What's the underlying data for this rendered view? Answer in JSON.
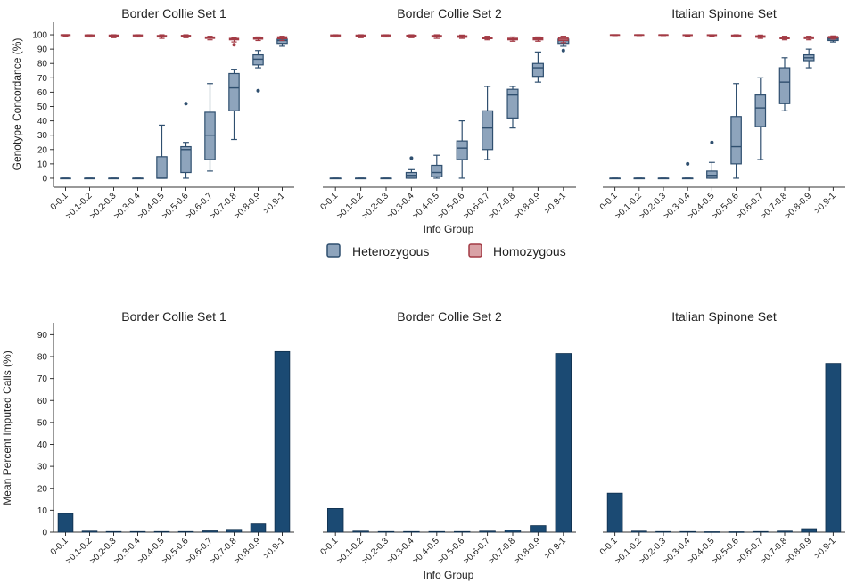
{
  "figure": {
    "legend": {
      "items": [
        {
          "label": "Heterozygous",
          "fill": "#8ea4bc",
          "stroke": "#2f4f6f"
        },
        {
          "label": "Homozygous",
          "fill": "#d9a2a6",
          "stroke": "#a33b45"
        }
      ]
    },
    "top_ylabel": "Genotype Concordance (%)",
    "top_xlabel": "Info Group",
    "bottom_ylabel": "Mean Percent Imputed Calls (%)",
    "bottom_xlabel": "Info Group"
  },
  "chart_data": [
    {
      "type": "boxplot",
      "title": "Border Collie Set 1",
      "xlabel": "Info Group",
      "ylabel": "Genotype Concordance (%)",
      "ylim": [
        -5,
        105
      ],
      "yticks": [
        0,
        10,
        20,
        30,
        40,
        50,
        60,
        70,
        80,
        90,
        100
      ],
      "categories": [
        "0-0.1",
        ">0.1-0.2",
        ">0.2-0.3",
        ">0.3-0.4",
        ">0.4-0.5",
        ">0.5-0.6",
        ">0.6-0.7",
        ">0.7-0.8",
        ">0.8-0.9",
        ">0.9-1"
      ],
      "series": [
        {
          "name": "Heterozygous",
          "color": "#8ea4bc",
          "boxes": [
            {
              "min": 0,
              "q1": 0,
              "median": 0,
              "q3": 0,
              "max": 0,
              "outliers": []
            },
            {
              "min": 0,
              "q1": 0,
              "median": 0,
              "q3": 0,
              "max": 0,
              "outliers": []
            },
            {
              "min": 0,
              "q1": 0,
              "median": 0,
              "q3": 0,
              "max": 0,
              "outliers": []
            },
            {
              "min": 0,
              "q1": 0,
              "median": 0,
              "q3": 0,
              "max": 0,
              "outliers": []
            },
            {
              "min": 0,
              "q1": 0,
              "median": 0,
              "q3": 15,
              "max": 37,
              "outliers": []
            },
            {
              "min": 0,
              "q1": 4,
              "median": 20,
              "q3": 22,
              "max": 25,
              "outliers": [
                52
              ]
            },
            {
              "min": 5,
              "q1": 13,
              "median": 30,
              "q3": 46,
              "max": 66,
              "outliers": []
            },
            {
              "min": 27,
              "q1": 47,
              "median": 63,
              "q3": 73,
              "max": 76,
              "outliers": []
            },
            {
              "min": 77,
              "q1": 79,
              "median": 83,
              "q3": 86,
              "max": 89,
              "outliers": [
                61
              ]
            },
            {
              "min": 92,
              "q1": 94,
              "median": 96,
              "q3": 97,
              "max": 98,
              "outliers": []
            }
          ]
        },
        {
          "name": "Homozygous",
          "color": "#d9a2a6",
          "boxes": [
            {
              "min": 99,
              "q1": 99.5,
              "median": 100,
              "q3": 100,
              "max": 100,
              "outliers": []
            },
            {
              "min": 98.5,
              "q1": 99.2,
              "median": 99.6,
              "q3": 99.9,
              "max": 100,
              "outliers": []
            },
            {
              "min": 98,
              "q1": 99,
              "median": 99.5,
              "q3": 99.8,
              "max": 100,
              "outliers": []
            },
            {
              "min": 98.5,
              "q1": 99.2,
              "median": 99.6,
              "q3": 99.9,
              "max": 100,
              "outliers": []
            },
            {
              "min": 97.5,
              "q1": 98.5,
              "median": 99,
              "q3": 99.5,
              "max": 100,
              "outliers": []
            },
            {
              "min": 98,
              "q1": 98.8,
              "median": 99.2,
              "q3": 99.6,
              "max": 100,
              "outliers": []
            },
            {
              "min": 96.5,
              "q1": 97.5,
              "median": 98,
              "q3": 98.5,
              "max": 99,
              "outliers": []
            },
            {
              "min": 95,
              "q1": 96.5,
              "median": 97,
              "q3": 97.5,
              "max": 98,
              "outliers": [
                93
              ]
            },
            {
              "min": 96,
              "q1": 97,
              "median": 97.5,
              "q3": 98,
              "max": 98.5,
              "outliers": []
            },
            {
              "min": 96,
              "q1": 97.3,
              "median": 98,
              "q3": 98.6,
              "max": 99,
              "outliers": []
            }
          ]
        }
      ]
    },
    {
      "type": "boxplot",
      "title": "Border Collie Set 2",
      "xlabel": "Info Group",
      "ylabel": "Genotype Concordance (%)",
      "ylim": [
        -5,
        105
      ],
      "yticks": [
        0,
        10,
        20,
        30,
        40,
        50,
        60,
        70,
        80,
        90,
        100
      ],
      "categories": [
        "0-0.1",
        ">0.1-0.2",
        ">0.2-0.3",
        ">0.3-0.4",
        ">0.4-0.5",
        ">0.5-0.6",
        ">0.6-0.7",
        ">0.7-0.8",
        ">0.8-0.9",
        ">0.9-1"
      ],
      "series": [
        {
          "name": "Heterozygous",
          "color": "#8ea4bc",
          "boxes": [
            {
              "min": 0,
              "q1": 0,
              "median": 0,
              "q3": 0,
              "max": 0,
              "outliers": []
            },
            {
              "min": 0,
              "q1": 0,
              "median": 0,
              "q3": 0,
              "max": 0,
              "outliers": []
            },
            {
              "min": 0,
              "q1": 0,
              "median": 0,
              "q3": 0,
              "max": 0,
              "outliers": []
            },
            {
              "min": 0,
              "q1": 0,
              "median": 2,
              "q3": 4,
              "max": 6,
              "outliers": [
                14
              ]
            },
            {
              "min": 0,
              "q1": 1,
              "median": 4,
              "q3": 9,
              "max": 16,
              "outliers": []
            },
            {
              "min": 0,
              "q1": 13,
              "median": 21,
              "q3": 26,
              "max": 40,
              "outliers": []
            },
            {
              "min": 13,
              "q1": 20,
              "median": 35,
              "q3": 47,
              "max": 64,
              "outliers": []
            },
            {
              "min": 35,
              "q1": 42,
              "median": 58,
              "q3": 62,
              "max": 64,
              "outliers": []
            },
            {
              "min": 67,
              "q1": 71,
              "median": 77,
              "q3": 80,
              "max": 88,
              "outliers": []
            },
            {
              "min": 92,
              "q1": 94,
              "median": 96,
              "q3": 97,
              "max": 98,
              "outliers": [
                89
              ]
            }
          ]
        },
        {
          "name": "Homozygous",
          "color": "#d9a2a6",
          "boxes": [
            {
              "min": 98.5,
              "q1": 99.2,
              "median": 99.6,
              "q3": 99.9,
              "max": 100,
              "outliers": []
            },
            {
              "min": 98,
              "q1": 99,
              "median": 99.5,
              "q3": 99.8,
              "max": 100,
              "outliers": []
            },
            {
              "min": 98.5,
              "q1": 99.2,
              "median": 99.6,
              "q3": 99.9,
              "max": 100,
              "outliers": []
            },
            {
              "min": 98,
              "q1": 98.8,
              "median": 99.3,
              "q3": 99.7,
              "max": 100,
              "outliers": []
            },
            {
              "min": 97.5,
              "q1": 98.5,
              "median": 99,
              "q3": 99.5,
              "max": 100,
              "outliers": []
            },
            {
              "min": 97.5,
              "q1": 98.3,
              "median": 98.8,
              "q3": 99.3,
              "max": 99.8,
              "outliers": []
            },
            {
              "min": 96.5,
              "q1": 97.3,
              "median": 97.8,
              "q3": 98.3,
              "max": 99,
              "outliers": []
            },
            {
              "min": 95.5,
              "q1": 96.5,
              "median": 97,
              "q3": 97.6,
              "max": 98.5,
              "outliers": []
            },
            {
              "min": 95.5,
              "q1": 96.5,
              "median": 97.2,
              "q3": 97.8,
              "max": 98.5,
              "outliers": []
            },
            {
              "min": 94.5,
              "q1": 96,
              "median": 97,
              "q3": 98,
              "max": 99,
              "outliers": []
            }
          ]
        }
      ]
    },
    {
      "type": "boxplot",
      "title": "Italian Spinone Set",
      "xlabel": "Info Group",
      "ylabel": "Genotype Concordance (%)",
      "ylim": [
        -5,
        105
      ],
      "yticks": [
        0,
        10,
        20,
        30,
        40,
        50,
        60,
        70,
        80,
        90,
        100
      ],
      "categories": [
        "0-0.1",
        ">0.1-0.2",
        ">0.2-0.3",
        ">0.3-0.4",
        ">0.4-0.5",
        ">0.5-0.6",
        ">0.6-0.7",
        ">0.7-0.8",
        ">0.8-0.9",
        ">0.9-1"
      ],
      "series": [
        {
          "name": "Heterozygous",
          "color": "#8ea4bc",
          "boxes": [
            {
              "min": 0,
              "q1": 0,
              "median": 0,
              "q3": 0,
              "max": 0,
              "outliers": []
            },
            {
              "min": 0,
              "q1": 0,
              "median": 0,
              "q3": 0,
              "max": 0,
              "outliers": []
            },
            {
              "min": 0,
              "q1": 0,
              "median": 0,
              "q3": 0,
              "max": 0,
              "outliers": []
            },
            {
              "min": 0,
              "q1": 0,
              "median": 0,
              "q3": 0,
              "max": 0,
              "outliers": [
                10
              ]
            },
            {
              "min": 0,
              "q1": 0,
              "median": 2,
              "q3": 5,
              "max": 11,
              "outliers": [
                25
              ]
            },
            {
              "min": 0,
              "q1": 10,
              "median": 22,
              "q3": 43,
              "max": 66,
              "outliers": []
            },
            {
              "min": 13,
              "q1": 36,
              "median": 49,
              "q3": 58,
              "max": 70,
              "outliers": []
            },
            {
              "min": 47,
              "q1": 52,
              "median": 67,
              "q3": 77,
              "max": 84,
              "outliers": []
            },
            {
              "min": 77,
              "q1": 82,
              "median": 84,
              "q3": 86,
              "max": 90,
              "outliers": []
            },
            {
              "min": 95,
              "q1": 96,
              "median": 97,
              "q3": 98,
              "max": 98.5,
              "outliers": []
            }
          ]
        },
        {
          "name": "Homozygous",
          "color": "#d9a2a6",
          "boxes": [
            {
              "min": 99.5,
              "q1": 99.8,
              "median": 100,
              "q3": 100,
              "max": 100,
              "outliers": []
            },
            {
              "min": 99.5,
              "q1": 99.8,
              "median": 100,
              "q3": 100,
              "max": 100,
              "outliers": []
            },
            {
              "min": 99.5,
              "q1": 99.8,
              "median": 100,
              "q3": 100,
              "max": 100,
              "outliers": []
            },
            {
              "min": 99,
              "q1": 99.5,
              "median": 99.8,
              "q3": 100,
              "max": 100,
              "outliers": []
            },
            {
              "min": 99,
              "q1": 99.5,
              "median": 99.8,
              "q3": 100,
              "max": 100,
              "outliers": []
            },
            {
              "min": 98.5,
              "q1": 99.2,
              "median": 99.5,
              "q3": 99.8,
              "max": 100,
              "outliers": []
            },
            {
              "min": 97.5,
              "q1": 98.3,
              "median": 98.8,
              "q3": 99.3,
              "max": 99.8,
              "outliers": []
            },
            {
              "min": 96.5,
              "q1": 97.3,
              "median": 97.8,
              "q3": 98.4,
              "max": 99,
              "outliers": []
            },
            {
              "min": 96.5,
              "q1": 97.4,
              "median": 98,
              "q3": 98.5,
              "max": 99,
              "outliers": []
            },
            {
              "min": 97,
              "q1": 97.8,
              "median": 98.3,
              "q3": 98.8,
              "max": 99.2,
              "outliers": []
            }
          ]
        }
      ]
    },
    {
      "type": "bar",
      "title": "Border Collie Set 1",
      "xlabel": "Info Group",
      "ylabel": "Mean Percent Imputed Calls (%)",
      "ylim": [
        0,
        93
      ],
      "yticks": [
        0,
        10,
        20,
        30,
        40,
        50,
        60,
        70,
        80,
        90
      ],
      "color": "#1b4a73",
      "categories": [
        "0-0.1",
        ">0.1-0.2",
        ">0.2-0.3",
        ">0.3-0.4",
        ">0.4-0.5",
        ">0.5-0.6",
        ">0.6-0.7",
        ">0.7-0.8",
        ">0.8-0.9",
        ">0.9-1"
      ],
      "values": [
        8.5,
        0.5,
        0.3,
        0.3,
        0.3,
        0.3,
        0.6,
        1.3,
        3.8,
        82.3
      ]
    },
    {
      "type": "bar",
      "title": "Border Collie Set 2",
      "xlabel": "Info Group",
      "ylabel": "Mean Percent Imputed Calls (%)",
      "ylim": [
        0,
        93
      ],
      "yticks": [
        0,
        10,
        20,
        30,
        40,
        50,
        60,
        70,
        80,
        90
      ],
      "color": "#1b4a73",
      "categories": [
        "0-0.1",
        ">0.1-0.2",
        ">0.2-0.3",
        ">0.3-0.4",
        ">0.4-0.5",
        ">0.5-0.6",
        ">0.6-0.7",
        ">0.7-0.8",
        ">0.8-0.9",
        ">0.9-1"
      ],
      "values": [
        10.8,
        0.5,
        0.3,
        0.3,
        0.3,
        0.3,
        0.5,
        1.0,
        3.0,
        81.4
      ]
    },
    {
      "type": "bar",
      "title": "Italian Spinone Set",
      "xlabel": "Info Group",
      "ylabel": "Mean Percent Imputed Calls (%)",
      "ylim": [
        0,
        93
      ],
      "yticks": [
        0,
        10,
        20,
        30,
        40,
        50,
        60,
        70,
        80,
        90
      ],
      "color": "#1b4a73",
      "categories": [
        "0-0.1",
        ">0.1-0.2",
        ">0.2-0.3",
        ">0.3-0.4",
        ">0.4-0.5",
        ">0.5-0.6",
        ">0.6-0.7",
        ">0.7-0.8",
        ">0.8-0.9",
        ">0.9-1"
      ],
      "values": [
        17.8,
        0.5,
        0.3,
        0.3,
        0.2,
        0.2,
        0.3,
        0.5,
        1.6,
        76.9
      ]
    }
  ]
}
